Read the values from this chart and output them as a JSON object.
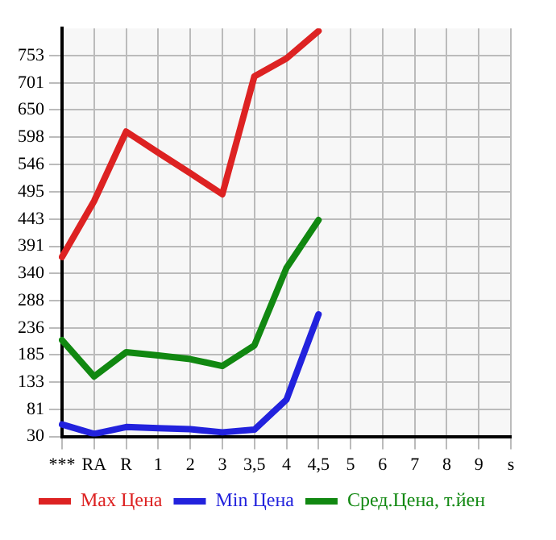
{
  "chart_data": {
    "type": "line",
    "categories": [
      "***",
      "RA",
      "R",
      "1",
      "2",
      "3",
      "3,5",
      "4",
      "4,5",
      "5",
      "6",
      "7",
      "8",
      "9",
      "s"
    ],
    "series": [
      {
        "name": "Max Цена",
        "color": "#dd2222",
        "values": [
          371,
          477,
          609,
          569,
          530,
          490,
          714,
          748,
          800,
          null,
          null,
          null,
          null,
          null,
          null
        ]
      },
      {
        "name": "Min Цена",
        "color": "#2222dd",
        "values": [
          53,
          35,
          48,
          46,
          44,
          38,
          43,
          100,
          262,
          null,
          null,
          null,
          null,
          null,
          null
        ]
      },
      {
        "name": "Сред.Цена, т.йен",
        "color": "#118811",
        "values": [
          213,
          144,
          190,
          184,
          177,
          164,
          203,
          350,
          441,
          null,
          null,
          null,
          null,
          null,
          null
        ]
      }
    ],
    "ylim": [
      30,
      805
    ],
    "yticks": [
      30,
      81,
      133,
      185,
      236,
      288,
      340,
      391,
      443,
      495,
      546,
      598,
      650,
      701,
      753
    ],
    "grid": true,
    "legend": "bottom",
    "marker": "none",
    "line_style": "solid"
  }
}
